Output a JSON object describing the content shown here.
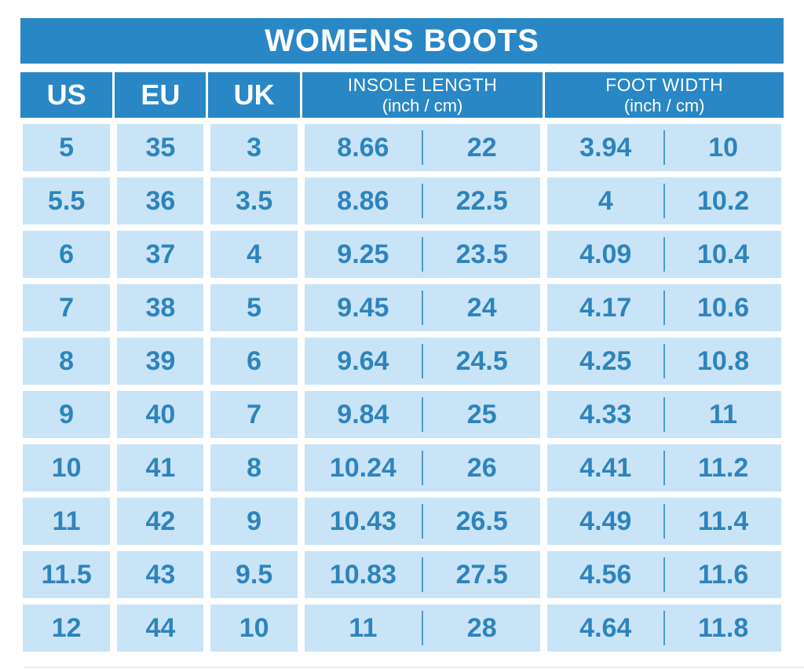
{
  "title": "WOMENS BOOTS",
  "colors": {
    "header_bg": "#2987c5",
    "header_text": "#ffffff",
    "cell_bg": "#c9e4f6",
    "value_text": "#2e83bc",
    "divider_line": "#4d9bc6",
    "page_bg": "#ffffff",
    "bottom_edge_line": "#f8e9df"
  },
  "columns": {
    "us": "US",
    "eu": "EU",
    "uk": "UK",
    "insole": {
      "line1": "INSOLE LENGTH",
      "line2": "(inch / cm)"
    },
    "foot": {
      "line1": "FOOT WIDTH",
      "line2": "(inch / cm)"
    }
  },
  "chart_data": {
    "type": "table",
    "title": "WOMENS BOOTS",
    "columns": [
      "US",
      "EU",
      "UK",
      "INSOLE LENGTH (inch)",
      "INSOLE LENGTH (cm)",
      "FOOT WIDTH (inch)",
      "FOOT WIDTH (cm)"
    ],
    "rows": [
      [
        "5",
        "35",
        "3",
        "8.66",
        "22",
        "3.94",
        "10"
      ],
      [
        "5.5",
        "36",
        "3.5",
        "8.86",
        "22.5",
        "4",
        "10.2"
      ],
      [
        "6",
        "37",
        "4",
        "9.25",
        "23.5",
        "4.09",
        "10.4"
      ],
      [
        "7",
        "38",
        "5",
        "9.45",
        "24",
        "4.17",
        "10.6"
      ],
      [
        "8",
        "39",
        "6",
        "9.64",
        "24.5",
        "4.25",
        "10.8"
      ],
      [
        "9",
        "40",
        "7",
        "9.84",
        "25",
        "4.33",
        "11"
      ],
      [
        "10",
        "41",
        "8",
        "10.24",
        "26",
        "4.41",
        "11.2"
      ],
      [
        "11",
        "42",
        "9",
        "10.43",
        "26.5",
        "4.49",
        "11.4"
      ],
      [
        "11.5",
        "43",
        "9.5",
        "10.83",
        "27.5",
        "4.56",
        "11.6"
      ],
      [
        "12",
        "44",
        "10",
        "11",
        "28",
        "4.64",
        "11.8"
      ]
    ]
  }
}
